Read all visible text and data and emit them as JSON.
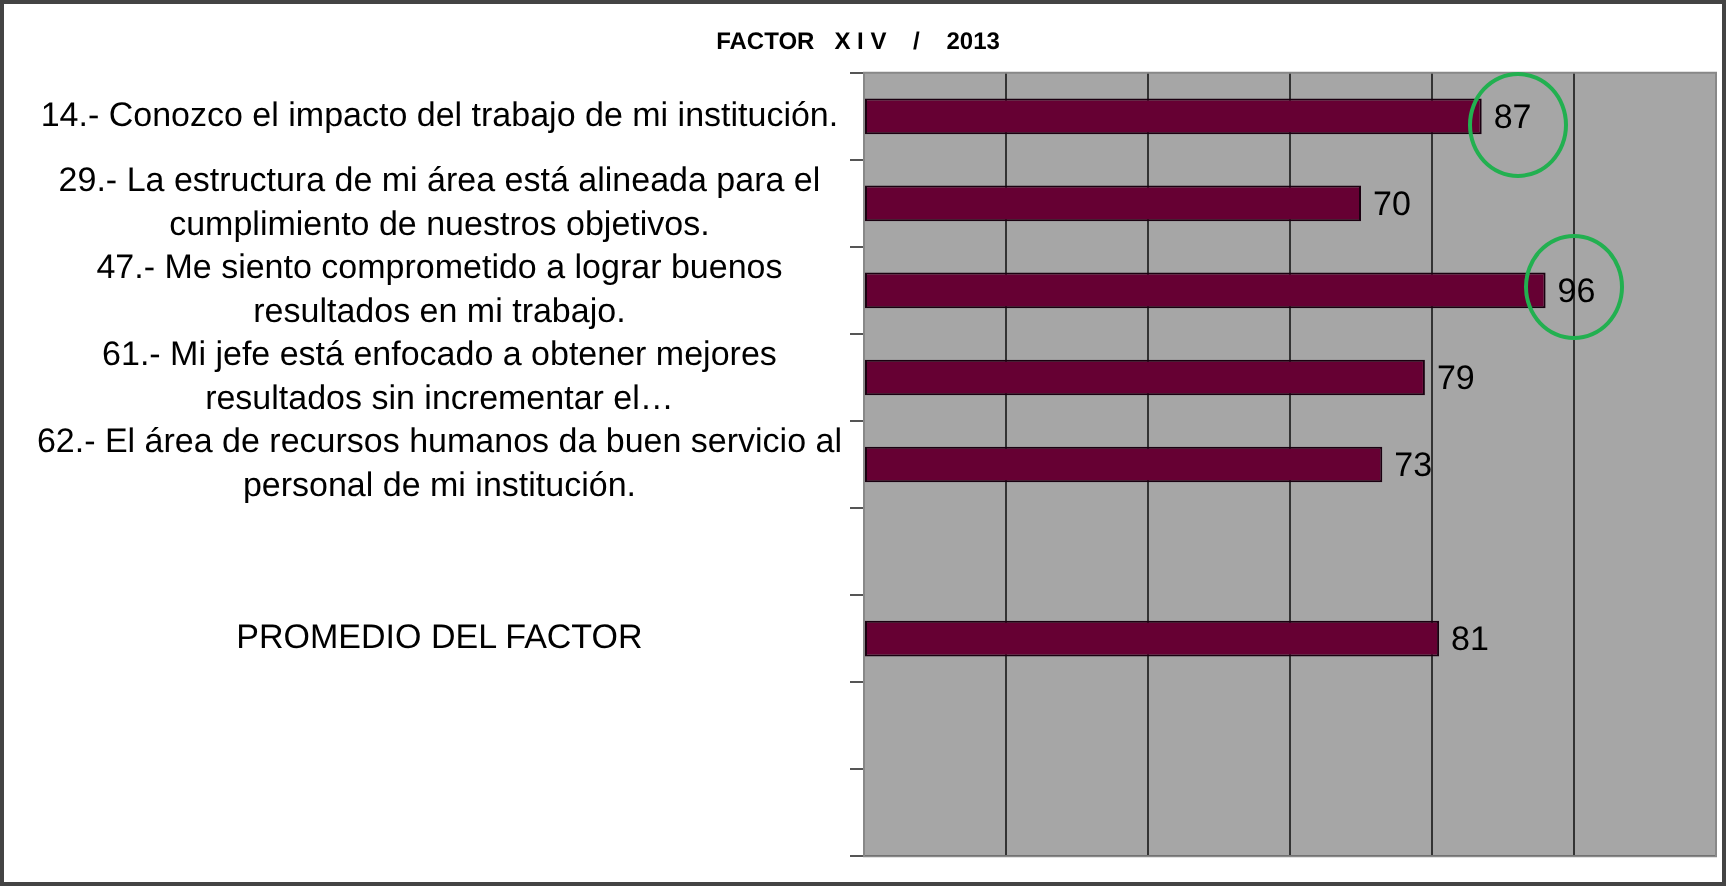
{
  "chart_data": {
    "type": "bar",
    "orientation": "horizontal",
    "title": "FACTOR   X I V    /    2013",
    "categories": [
      "14.- Conozco el impacto del trabajo de mi institución.",
      "29.- La estructura de mi área está alineada para el cumplimiento de nuestros objetivos.",
      "47.- Me siento comprometido a lograr buenos resultados en mi trabajo.",
      "61.- Mi jefe está enfocado a obtener mejores resultados sin incrementar el…",
      "62.- El área de recursos humanos da buen servicio al personal de mi institución.",
      null,
      "PROMEDIO DEL FACTOR",
      null,
      null
    ],
    "values": [
      87,
      70,
      96,
      79,
      73,
      null,
      81,
      null,
      null
    ],
    "color": "#660033",
    "xlim": [
      0,
      120
    ],
    "xticks": [
      {
        "value": 0,
        "label": null
      },
      {
        "value": 20,
        "label": null
      },
      {
        "value": 40,
        "label": null
      },
      {
        "value": 60,
        "label": null
      },
      {
        "value": 80,
        "label": null
      },
      {
        "value": 100,
        "label": null
      },
      {
        "value": 120,
        "label": null
      }
    ],
    "tick_labels": "y",
    "grid": "x",
    "legend": false,
    "data_labels": true
  }
}
